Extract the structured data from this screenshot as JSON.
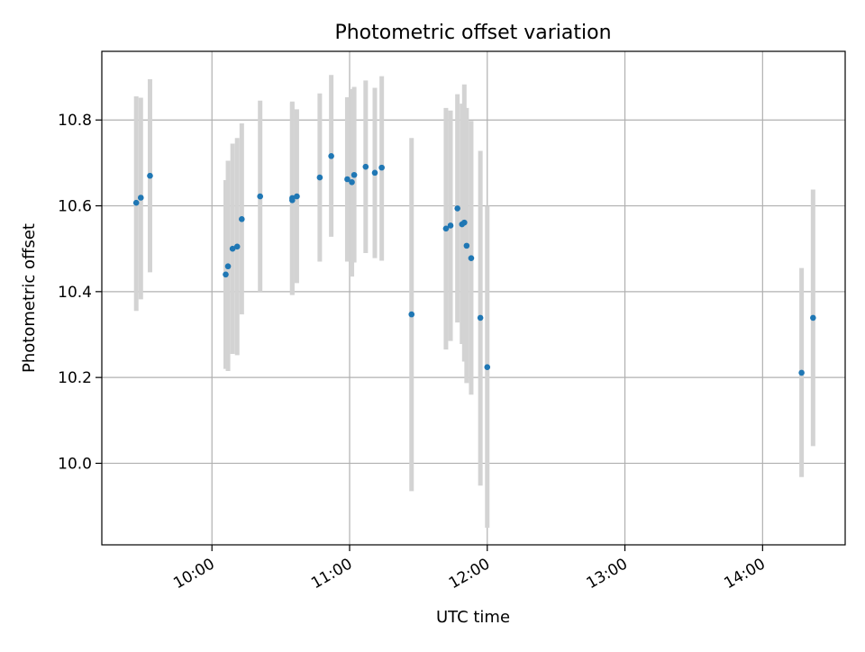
{
  "chart_data": {
    "type": "scatter",
    "title": "Photometric offset variation",
    "xlabel": "UTC time",
    "ylabel": "Photometric offset",
    "x_axis_type": "time",
    "xlim": [
      "09:12",
      "14:36"
    ],
    "ylim": [
      9.81,
      10.96
    ],
    "x_ticks": [
      "10:00",
      "11:00",
      "12:00",
      "13:00",
      "14:00"
    ],
    "y_ticks": [
      10.0,
      10.2,
      10.4,
      10.6,
      10.8
    ],
    "y_tick_labels": [
      "10.0",
      "10.2",
      "10.4",
      "10.6",
      "10.8"
    ],
    "grid": true,
    "legend": "none",
    "point_color": "#1f77b4",
    "errorbar_color": "#d3d3d3",
    "points": [
      {
        "x": "09:27",
        "y": 10.607,
        "lo": 10.355,
        "hi": 10.855
      },
      {
        "x": "09:29",
        "y": 10.619,
        "lo": 10.382,
        "hi": 10.852
      },
      {
        "x": "09:33",
        "y": 10.67,
        "lo": 10.445,
        "hi": 10.895
      },
      {
        "x": "10:06",
        "y": 10.44,
        "lo": 10.22,
        "hi": 10.66
      },
      {
        "x": "10:07",
        "y": 10.459,
        "lo": 10.215,
        "hi": 10.705
      },
      {
        "x": "10:09",
        "y": 10.5,
        "lo": 10.255,
        "hi": 10.745
      },
      {
        "x": "10:11",
        "y": 10.505,
        "lo": 10.252,
        "hi": 10.758
      },
      {
        "x": "10:13",
        "y": 10.569,
        "lo": 10.347,
        "hi": 10.792
      },
      {
        "x": "10:21",
        "y": 10.622,
        "lo": 10.4,
        "hi": 10.845
      },
      {
        "x": "10:35",
        "y": 10.613,
        "lo": 10.392,
        "hi": 10.84
      },
      {
        "x": "10:35",
        "y": 10.618,
        "lo": 10.393,
        "hi": 10.843
      },
      {
        "x": "10:37",
        "y": 10.622,
        "lo": 10.42,
        "hi": 10.825
      },
      {
        "x": "10:47",
        "y": 10.666,
        "lo": 10.47,
        "hi": 10.862
      },
      {
        "x": "10:52",
        "y": 10.716,
        "lo": 10.528,
        "hi": 10.905
      },
      {
        "x": "10:59",
        "y": 10.662,
        "lo": 10.47,
        "hi": 10.853
      },
      {
        "x": "11:01",
        "y": 10.655,
        "lo": 10.435,
        "hi": 10.872
      },
      {
        "x": "11:02",
        "y": 10.672,
        "lo": 10.468,
        "hi": 10.877
      },
      {
        "x": "11:07",
        "y": 10.691,
        "lo": 10.49,
        "hi": 10.892
      },
      {
        "x": "11:11",
        "y": 10.677,
        "lo": 10.478,
        "hi": 10.875
      },
      {
        "x": "11:14",
        "y": 10.689,
        "lo": 10.472,
        "hi": 10.902
      },
      {
        "x": "11:27",
        "y": 10.347,
        "lo": 9.935,
        "hi": 10.758
      },
      {
        "x": "11:42",
        "y": 10.547,
        "lo": 10.265,
        "hi": 10.828
      },
      {
        "x": "11:44",
        "y": 10.554,
        "lo": 10.285,
        "hi": 10.822
      },
      {
        "x": "11:47",
        "y": 10.594,
        "lo": 10.328,
        "hi": 10.86
      },
      {
        "x": "11:49",
        "y": 10.557,
        "lo": 10.278,
        "hi": 10.838
      },
      {
        "x": "11:50",
        "y": 10.561,
        "lo": 10.237,
        "hi": 10.883
      },
      {
        "x": "11:51",
        "y": 10.507,
        "lo": 10.187,
        "hi": 10.828
      },
      {
        "x": "11:53",
        "y": 10.478,
        "lo": 10.16,
        "hi": 10.798
      },
      {
        "x": "11:57",
        "y": 10.339,
        "lo": 9.948,
        "hi": 10.728
      },
      {
        "x": "12:00",
        "y": 10.224,
        "lo": 9.85,
        "hi": 10.6
      },
      {
        "x": "14:17",
        "y": 10.211,
        "lo": 9.968,
        "hi": 10.455
      },
      {
        "x": "14:22",
        "y": 10.339,
        "lo": 10.04,
        "hi": 10.638
      }
    ]
  }
}
